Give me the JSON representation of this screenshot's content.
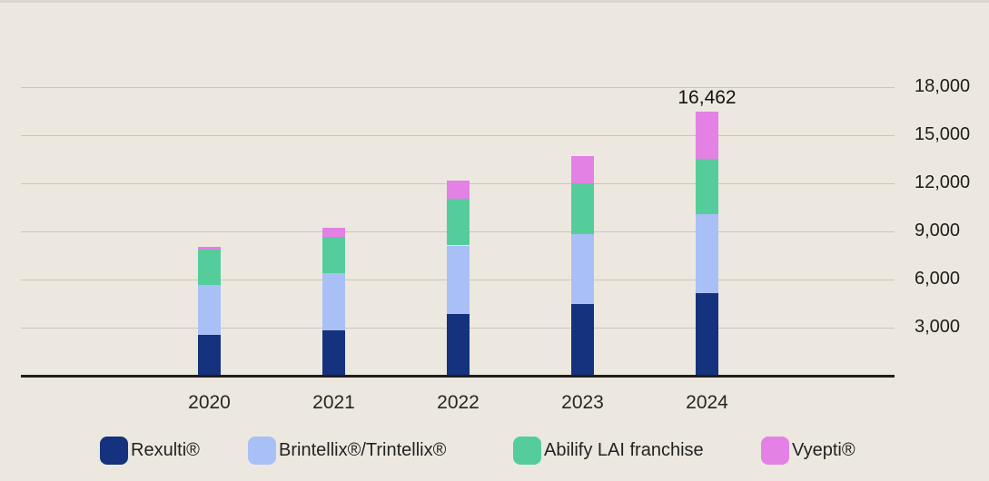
{
  "chart_data": {
    "type": "bar",
    "stacked": true,
    "title": "",
    "xlabel": "",
    "ylabel": "",
    "categories": [
      "2020",
      "2021",
      "2022",
      "2023",
      "2024"
    ],
    "series": [
      {
        "name": "Rexulti®",
        "color": "#15327E",
        "values": [
          2550,
          2850,
          3870,
          4470,
          5164
        ]
      },
      {
        "name": "Brintellix®/Trintellix®",
        "color": "#A9C0F6",
        "values": [
          3100,
          3550,
          4250,
          4360,
          4940
        ]
      },
      {
        "name": "Abilify LAI franchise",
        "color": "#55CD9B",
        "values": [
          2200,
          2270,
          2950,
          3170,
          3425
        ]
      },
      {
        "name": "Vyepti®",
        "color": "#E381E4",
        "values": [
          170,
          560,
          1130,
          1700,
          2933
        ]
      }
    ],
    "totals": [
      8020,
      9230,
      12200,
      13700,
      16462
    ],
    "y_ticks": [
      {
        "value": 3000,
        "label": "3,000"
      },
      {
        "value": 6000,
        "label": "6,000"
      },
      {
        "value": 9000,
        "label": "9,000"
      },
      {
        "value": 12000,
        "label": "12,000"
      },
      {
        "value": 15000,
        "label": "15,000"
      },
      {
        "value": 18000,
        "label": "18,000"
      }
    ],
    "ylim": [
      0,
      19500
    ],
    "grid": true,
    "y_axis_side": "right",
    "legend_position": "bottom",
    "annotation": {
      "text": "16,462",
      "category": "2024",
      "value": 16462
    }
  },
  "colors": {
    "background": "#ECE8DF",
    "gridline": "#C9C5BD",
    "axis_line": "#1F1F1C",
    "text": "#1D1D1B"
  }
}
